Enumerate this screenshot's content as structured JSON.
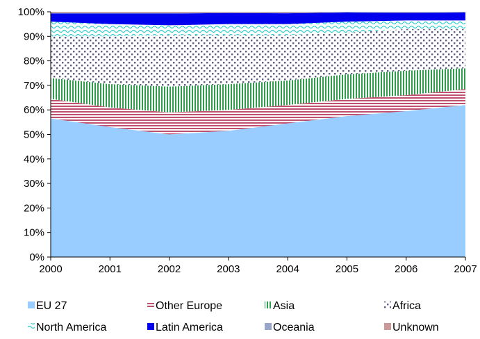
{
  "chart_data": {
    "type": "area",
    "stacked": true,
    "normalized": true,
    "title": "",
    "xlabel": "",
    "ylabel": "",
    "x": [
      "2000",
      "2001",
      "2002",
      "2003",
      "2004",
      "2005",
      "2006",
      "2007"
    ],
    "y_ticks": [
      "0%",
      "10%",
      "20%",
      "30%",
      "40%",
      "50%",
      "60%",
      "70%",
      "80%",
      "90%",
      "100%"
    ],
    "ylim": [
      0,
      100
    ],
    "grid": false,
    "legend_position": "bottom",
    "series": [
      {
        "name": "EU 27",
        "color": "#99ccff",
        "pattern": "solid",
        "values": [
          56.5,
          53,
          50,
          51.5,
          54.5,
          57.5,
          59.5,
          62
        ]
      },
      {
        "name": "Other Europe",
        "color": "#c0506f",
        "pattern": "horizontal-stripes",
        "values": [
          8,
          8,
          9,
          8.5,
          7.5,
          7,
          6.5,
          6.5
        ]
      },
      {
        "name": "Asia",
        "color": "#2e9e4d",
        "pattern": "vertical-stripes",
        "values": [
          8.5,
          9.5,
          10.5,
          10.5,
          10,
          10,
          10,
          8.5
        ]
      },
      {
        "name": "Africa",
        "color": "#5e5c87",
        "pattern": "dots",
        "values": [
          17,
          19.5,
          21,
          20,
          18.5,
          17,
          17,
          16
        ]
      },
      {
        "name": "North America",
        "color": "#33cccc",
        "pattern": "waves",
        "values": [
          6,
          5,
          4,
          4.5,
          4.5,
          4.5,
          3.5,
          3.5
        ]
      },
      {
        "name": "Latin America",
        "color": "#0000ee",
        "pattern": "solid",
        "values": [
          3.3,
          4.3,
          4.8,
          4.5,
          4.4,
          3.7,
          3.1,
          3.2
        ]
      },
      {
        "name": "Oceania",
        "color": "#99a6cc",
        "pattern": "solid",
        "values": [
          0.3,
          0.3,
          0.3,
          0.3,
          0.3,
          0.3,
          0.3,
          0.3
        ]
      },
      {
        "name": "Unknown",
        "color": "#cc9999",
        "pattern": "solid",
        "values": [
          0.4,
          0.4,
          0.4,
          0.2,
          0.3,
          0,
          0.1,
          0
        ]
      }
    ]
  }
}
